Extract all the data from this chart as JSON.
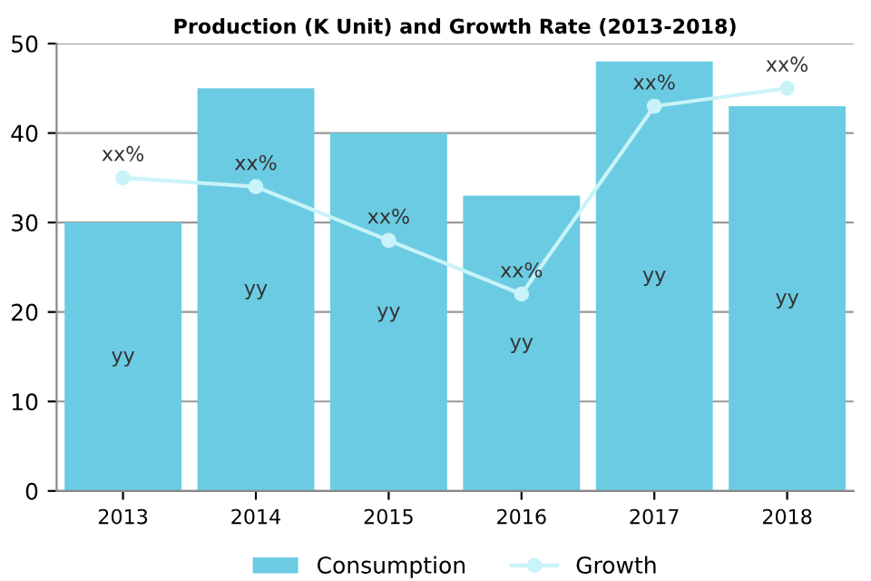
{
  "chart_data": {
    "type": "bar",
    "title": "Production (K Unit) and Growth Rate (2013-2018)",
    "categories": [
      "2013",
      "2014",
      "2015",
      "2016",
      "2017",
      "2018"
    ],
    "series": [
      {
        "name": "Consumption",
        "type": "bar",
        "color": "#6bcbe3",
        "values": [
          30,
          45,
          40,
          33,
          48,
          43
        ],
        "value_labels": [
          "yy",
          "yy",
          "yy",
          "yy",
          "yy",
          "yy"
        ]
      },
      {
        "name": "Growth",
        "type": "line",
        "color": "#c8f3f9",
        "marker": "circle",
        "values": [
          35,
          34,
          28,
          22,
          43,
          45
        ],
        "value_labels": [
          "xx%",
          "xx%",
          "xx%",
          "xx%",
          "xx%",
          "xx%"
        ]
      }
    ],
    "ylim": [
      0,
      50
    ],
    "yticks": [
      0,
      10,
      20,
      30,
      40,
      50
    ],
    "grid": "y",
    "legend": "bottom"
  }
}
